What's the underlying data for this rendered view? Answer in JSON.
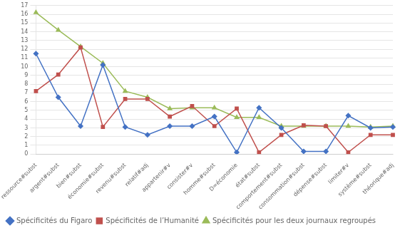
{
  "chart_data": {
    "type": "line",
    "categories": [
      "ressource#subst",
      "argent#subst",
      "bien#subst",
      "économie#subst",
      "revenu#subst",
      "relatif#adj",
      "appartenir#v",
      "consister#v",
      "homme#subst",
      "D=économie",
      "état#subst",
      "comportement#subst",
      "consommation#subst",
      "dépense#subst",
      "limiter#v",
      "système#subst",
      "théorique#adj"
    ],
    "series": [
      {
        "name": "Spécificités du Figaro",
        "color": "#4472C4",
        "marker": "diamond",
        "values": [
          11.5,
          6.5,
          3.2,
          10.2,
          3.1,
          2.2,
          3.2,
          3.2,
          4.3,
          0.2,
          5.3,
          3.0,
          0.3,
          0.3,
          4.4,
          3.0,
          3.1
        ]
      },
      {
        "name": "Spécificités de l’Humanité",
        "color": "#C0504D",
        "marker": "square",
        "values": [
          7.2,
          9.1,
          12.2,
          3.1,
          6.3,
          6.3,
          4.3,
          5.5,
          3.2,
          5.2,
          0.2,
          2.2,
          3.3,
          3.2,
          0.2,
          2.2,
          2.2
        ]
      },
      {
        "name": "Spécificités pour les deux journaux regroupés",
        "color": "#9BBB59",
        "marker": "triangle",
        "values": [
          16.2,
          14.2,
          12.3,
          10.4,
          7.2,
          6.5,
          5.2,
          5.3,
          5.3,
          4.2,
          4.2,
          3.2,
          3.2,
          3.2,
          3.2,
          3.1,
          3.2
        ]
      }
    ],
    "ylim": [
      0,
      17
    ],
    "yticks": [
      0,
      1,
      2,
      3,
      4,
      5,
      6,
      7,
      8,
      9,
      10,
      11,
      12,
      13,
      14,
      15,
      16,
      17
    ],
    "grid": "y",
    "legend": "bottom"
  }
}
